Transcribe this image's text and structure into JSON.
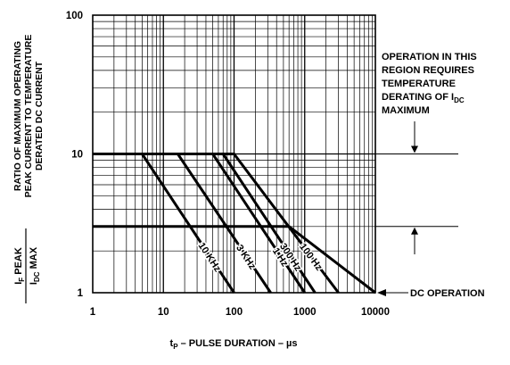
{
  "chart_data": {
    "type": "line",
    "x_scale": "log",
    "y_scale": "log",
    "xlim": [
      1,
      10000
    ],
    "ylim": [
      1,
      100
    ],
    "grid": true,
    "x_ticks": [
      "1",
      "10",
      "100",
      "1000",
      "10000"
    ],
    "y_ticks": [
      "1",
      "10",
      "100"
    ],
    "xlabel_main": "t",
    "xlabel_sub": "P",
    "xlabel_rest": " – PULSE DURATION – µs",
    "ylabel_lines": [
      "RATIO OF MAXIMUM OPERATING",
      "PEAK CURRENT TO TEMPERATURE",
      "DERATED DC CURRENT"
    ],
    "ratio_label": {
      "num_main": "I",
      "num_sub": "F",
      "num_rest": " PEAK",
      "den_main": "I",
      "den_sub": "DC",
      "den_rest": " MAX"
    },
    "annotation_lines": [
      "OPERATION IN THIS",
      "REGION REQUIRES",
      "TEMPERATURE"
    ],
    "annotation_last_main": "DERATING OF I",
    "annotation_last_sub": "DC",
    "annotation_end": "MAXIMUM",
    "dc_label": "DC OPERATION",
    "reference_levels": [
      10,
      3
    ],
    "series": [
      {
        "name": "10 KHz",
        "x": [
          1,
          5,
          100
        ],
        "y": [
          10,
          10,
          1
        ]
      },
      {
        "name": "3 KHz",
        "x": [
          1,
          16,
          330
        ],
        "y": [
          10,
          10,
          1
        ]
      },
      {
        "name": "1 Hz",
        "x": [
          1,
          50,
          1000
        ],
        "y": [
          10,
          10,
          1
        ]
      },
      {
        "name": "300 Hz",
        "x": [
          1,
          70,
          1400
        ],
        "y": [
          10,
          10,
          1
        ]
      },
      {
        "name": "100 Hz",
        "x": [
          1,
          100,
          3000
        ],
        "y": [
          10,
          10,
          1
        ]
      },
      {
        "name": "DC",
        "x": [
          1,
          600,
          10000
        ],
        "y": [
          3,
          3,
          1
        ]
      }
    ]
  }
}
